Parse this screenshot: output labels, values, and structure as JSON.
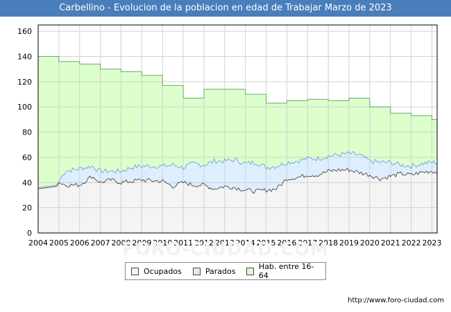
{
  "header": {
    "title": "Carbellino - Evolucion de la poblacion en edad de Trabajar Marzo de 2023"
  },
  "footer": {
    "url": "http://www.foro-ciudad.com"
  },
  "watermark": {
    "text": "FORO-CIUDAD.COM"
  },
  "colors": {
    "hab": "#ddffcc",
    "hab_line": "#66aa66",
    "parados": "#ddeeff",
    "parados_line": "#6699cc",
    "ocupados": "#f4f4f4",
    "ocupados_line": "#333333",
    "title_bg": "#4a7ebb"
  },
  "chart_data": {
    "type": "area",
    "title": "Carbellino - Evolucion de la poblacion en edad de Trabajar Marzo de 2023",
    "xlim": [
      2004,
      2023.25
    ],
    "ylim": [
      0,
      165
    ],
    "yticks": [
      0,
      20,
      40,
      60,
      80,
      100,
      120,
      140,
      160
    ],
    "xticks": [
      "2004",
      "2005",
      "2006",
      "2007",
      "2008",
      "2009",
      "2010",
      "2011",
      "2012",
      "2013",
      "2014",
      "2015",
      "2016",
      "2017",
      "2018",
      "2019",
      "2020",
      "2021",
      "2022",
      "2023"
    ],
    "grid": true,
    "legend": [
      "Ocupados",
      "Parados",
      "Hab. entre 16-64"
    ],
    "legend_position": "bottom-center",
    "hab_annual": {
      "years": [
        2004,
        2005,
        2006,
        2007,
        2008,
        2009,
        2010,
        2011,
        2012,
        2013,
        2014,
        2015,
        2016,
        2017,
        2018,
        2019,
        2020,
        2021,
        2022,
        2023
      ],
      "values": [
        140,
        136,
        134,
        130,
        128,
        125,
        117,
        107,
        114,
        114,
        110,
        103,
        105,
        106,
        105,
        107,
        100,
        95,
        93,
        90
      ]
    },
    "parados_anchors": {
      "x": [
        2004,
        2004.9,
        2005.3,
        2006,
        2006.6,
        2007,
        2008,
        2008.5,
        2009,
        2010,
        2010.5,
        2011,
        2011.5,
        2012,
        2012.5,
        2013,
        2013.5,
        2014,
        2014.5,
        2015,
        2015.5,
        2016,
        2016.5,
        2017,
        2017.5,
        2018,
        2018.5,
        2019,
        2019.5,
        2020,
        2020.5,
        2021,
        2021.5,
        2022,
        2022.5,
        2023,
        2023.25
      ],
      "values": [
        36,
        38,
        49,
        51,
        53,
        49,
        49,
        52,
        53,
        53,
        54,
        52,
        55,
        54,
        57,
        57,
        58,
        55,
        56,
        52,
        53,
        56,
        57,
        59,
        59,
        61,
        62,
        63,
        62,
        57,
        56,
        56,
        54,
        53,
        55,
        56,
        56
      ]
    },
    "ocupados_anchors": {
      "x": [
        2004,
        2004.4,
        2004.8,
        2005.3,
        2006,
        2006.6,
        2007,
        2007.5,
        2008,
        2009,
        2010,
        2010.5,
        2011,
        2011.5,
        2012,
        2012.5,
        2013,
        2013.5,
        2014,
        2014.5,
        2015,
        2015.5,
        2016,
        2016.5,
        2017,
        2017.5,
        2018,
        2018.5,
        2019,
        2019.5,
        2020,
        2020.5,
        2021,
        2021.5,
        2022,
        2022.5,
        2023,
        2023.25
      ],
      "values": [
        36,
        36,
        42,
        38,
        38,
        45,
        40,
        42,
        40,
        42,
        41,
        37,
        40,
        38,
        38,
        35,
        37,
        36,
        34,
        33,
        34,
        35,
        43,
        44,
        46,
        46,
        49,
        50,
        50,
        48,
        46,
        43,
        45,
        47,
        46,
        48,
        49,
        48
      ]
    }
  }
}
